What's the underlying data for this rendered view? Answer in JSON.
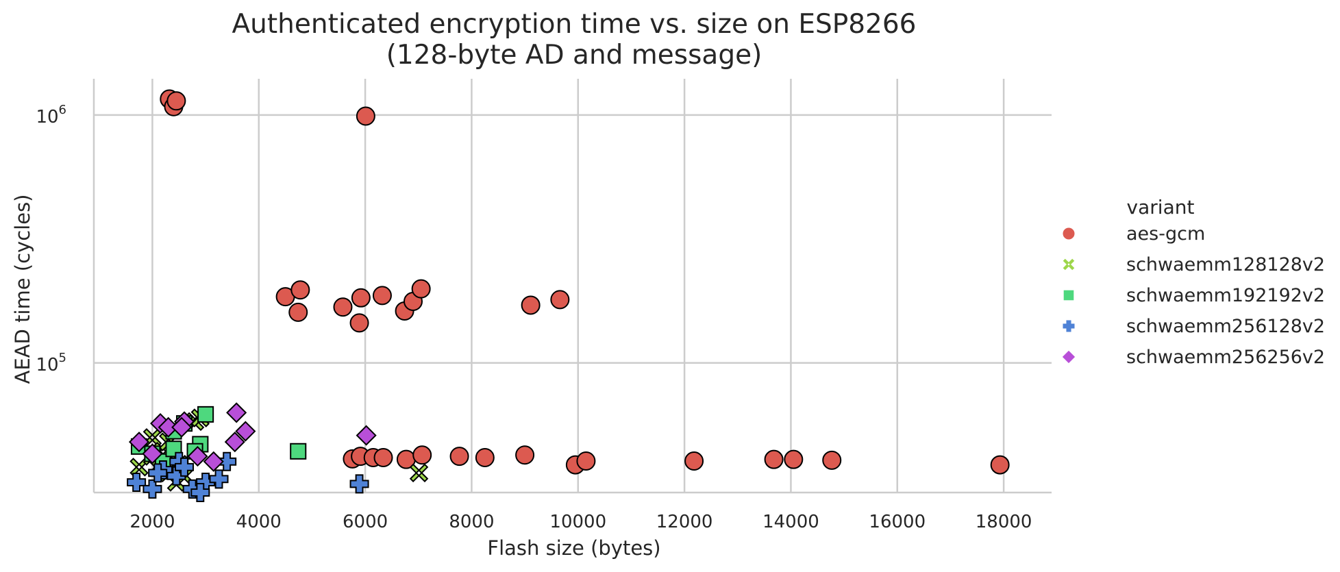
{
  "chart_data": {
    "type": "scatter",
    "title": "Authenticated encryption time vs. size on ESP8266",
    "subtitle": "(128-byte AD and message)",
    "xlabel": "Flash size (bytes)",
    "ylabel": "AEAD time (cycles)",
    "xlim": [
      900,
      18900
    ],
    "ylim": [
      30000,
      1400000
    ],
    "yscale": "log",
    "xticks": [
      "2000",
      "4000",
      "6000",
      "8000",
      "10000",
      "12000",
      "14000",
      "16000",
      "18000"
    ],
    "yticks": [
      {
        "value": 100000,
        "base": "10",
        "exp": "5"
      },
      {
        "value": 1000000,
        "base": "10",
        "exp": "6"
      }
    ],
    "grid": true,
    "legend_title": "variant",
    "legend_position": "right",
    "series": [
      {
        "name": "aes-gcm",
        "marker": "circle",
        "color": "#dc5a50",
        "points": [
          [
            2320,
            1160000
          ],
          [
            2400,
            1080000
          ],
          [
            2450,
            1140000
          ],
          [
            6010,
            990000
          ],
          [
            4500,
            185000
          ],
          [
            4780,
            197000
          ],
          [
            4740,
            160000
          ],
          [
            5580,
            168000
          ],
          [
            5920,
            183000
          ],
          [
            5890,
            145000
          ],
          [
            6320,
            187000
          ],
          [
            6740,
            162000
          ],
          [
            6900,
            177000
          ],
          [
            7050,
            199000
          ],
          [
            9110,
            171000
          ],
          [
            9660,
            180000
          ],
          [
            5760,
            41000
          ],
          [
            5910,
            42000
          ],
          [
            6150,
            41500
          ],
          [
            6340,
            41500
          ],
          [
            6770,
            40800
          ],
          [
            7070,
            42500
          ],
          [
            7770,
            42000
          ],
          [
            8250,
            41500
          ],
          [
            9000,
            42500
          ],
          [
            9950,
            38800
          ],
          [
            10150,
            40200
          ],
          [
            12180,
            40200
          ],
          [
            13680,
            40800
          ],
          [
            14050,
            40800
          ],
          [
            14770,
            40500
          ],
          [
            17930,
            38800
          ]
        ]
      },
      {
        "name": "schwaemm128128v2",
        "marker": "x",
        "color": "#9dd64a",
        "points": [
          [
            1750,
            38000
          ],
          [
            2000,
            50000
          ],
          [
            2200,
            44000
          ],
          [
            2300,
            48000
          ],
          [
            2100,
            38000
          ],
          [
            2300,
            36000
          ],
          [
            2450,
            33000
          ],
          [
            2600,
            35000
          ],
          [
            2800,
            58000
          ],
          [
            2900,
            60000
          ],
          [
            2000,
            42000
          ],
          [
            2500,
            39000
          ],
          [
            7010,
            36000
          ]
        ]
      },
      {
        "name": "schwaemm192192v2",
        "marker": "square",
        "color": "#4ed87e",
        "points": [
          [
            1750,
            46000
          ],
          [
            2000,
            43000
          ],
          [
            2200,
            40000
          ],
          [
            2400,
            45000
          ],
          [
            2600,
            57000
          ],
          [
            2900,
            47000
          ],
          [
            3000,
            62000
          ],
          [
            2800,
            44000
          ],
          [
            2400,
            53000
          ],
          [
            4740,
            44000
          ]
        ]
      },
      {
        "name": "schwaemm256128v2",
        "marker": "plus",
        "color": "#4f82d6",
        "points": [
          [
            1700,
            33000
          ],
          [
            2000,
            31000
          ],
          [
            2200,
            37000
          ],
          [
            2450,
            35000
          ],
          [
            2750,
            31000
          ],
          [
            3000,
            33000
          ],
          [
            3250,
            34000
          ],
          [
            3400,
            40000
          ],
          [
            2500,
            40000
          ],
          [
            2600,
            38000
          ],
          [
            2900,
            30000
          ],
          [
            2100,
            36000
          ],
          [
            5890,
            32500
          ]
        ]
      },
      {
        "name": "schwaemm256256v2",
        "marker": "diamond",
        "color": "#b84fd8",
        "points": [
          [
            1750,
            48000
          ],
          [
            2000,
            43000
          ],
          [
            2150,
            57000
          ],
          [
            2300,
            55000
          ],
          [
            2600,
            58000
          ],
          [
            2850,
            42000
          ],
          [
            3150,
            40000
          ],
          [
            3580,
            63000
          ],
          [
            3550,
            48000
          ],
          [
            3750,
            53000
          ],
          [
            2550,
            55000
          ],
          [
            6020,
            51000
          ]
        ]
      }
    ]
  }
}
